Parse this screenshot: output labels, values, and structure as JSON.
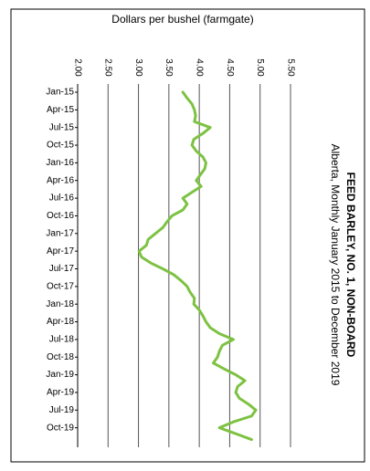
{
  "chart_data": {
    "type": "line",
    "orientation": "horizontal",
    "title": "FEED  BARLEY,  NO.  1, NON-BOARD",
    "subtitle": "Alberta, Monthly January 2015 to December 2019",
    "ylabel": "Dollars per bushel (farmgate)",
    "categories": [
      "Jan-15",
      null,
      null,
      "Apr-15",
      null,
      null,
      "Jul-15",
      null,
      null,
      "Oct-15",
      null,
      null,
      "Jan-16",
      null,
      null,
      "Apr-16",
      null,
      null,
      "Jul-16",
      null,
      null,
      "Oct-16",
      null,
      null,
      "Jan-17",
      null,
      null,
      "Apr-17",
      null,
      null,
      "Jul-17",
      null,
      null,
      "Oct-17",
      null,
      null,
      "Jan-18",
      null,
      null,
      "Apr-18",
      null,
      null,
      "Jul-18",
      null,
      null,
      "Oct-18",
      null,
      null,
      "Jan-19",
      null,
      null,
      "Apr-19",
      null,
      null,
      "Jul-19",
      null,
      null,
      "Oct-19",
      null,
      null
    ],
    "series": [
      {
        "name": "Feed barley",
        "color": "#7dc242",
        "values": [
          3.73,
          3.8,
          3.88,
          3.92,
          3.94,
          3.92,
          4.18,
          4.06,
          3.91,
          3.88,
          3.95,
          4.06,
          4.11,
          4.09,
          4.02,
          3.95,
          4.03,
          3.88,
          3.73,
          3.8,
          3.73,
          3.55,
          3.47,
          3.4,
          3.28,
          3.16,
          3.13,
          3.01,
          3.05,
          3.2,
          3.4,
          3.58,
          3.7,
          3.8,
          3.85,
          3.92,
          3.91,
          4.0,
          4.06,
          4.11,
          4.18,
          4.33,
          4.56,
          4.38,
          4.33,
          4.3,
          4.23,
          4.41,
          4.6,
          4.75,
          4.63,
          4.6,
          4.66,
          4.81,
          4.93,
          4.86,
          4.56,
          4.33,
          4.6,
          4.86
        ]
      }
    ],
    "ylim": [
      2,
      5.5
    ],
    "yticks": [
      {
        "value": 2,
        "label": "2.00"
      },
      {
        "value": 2.5,
        "label": "2.50"
      },
      {
        "value": 3,
        "label": "3.00"
      },
      {
        "value": 3.5,
        "label": "3.50"
      },
      {
        "value": 4,
        "label": "4.00"
      },
      {
        "value": 4.5,
        "label": "4.50"
      },
      {
        "value": 5,
        "label": "5.00"
      },
      {
        "value": 5.5,
        "label": "5.50"
      }
    ],
    "grid": true
  }
}
